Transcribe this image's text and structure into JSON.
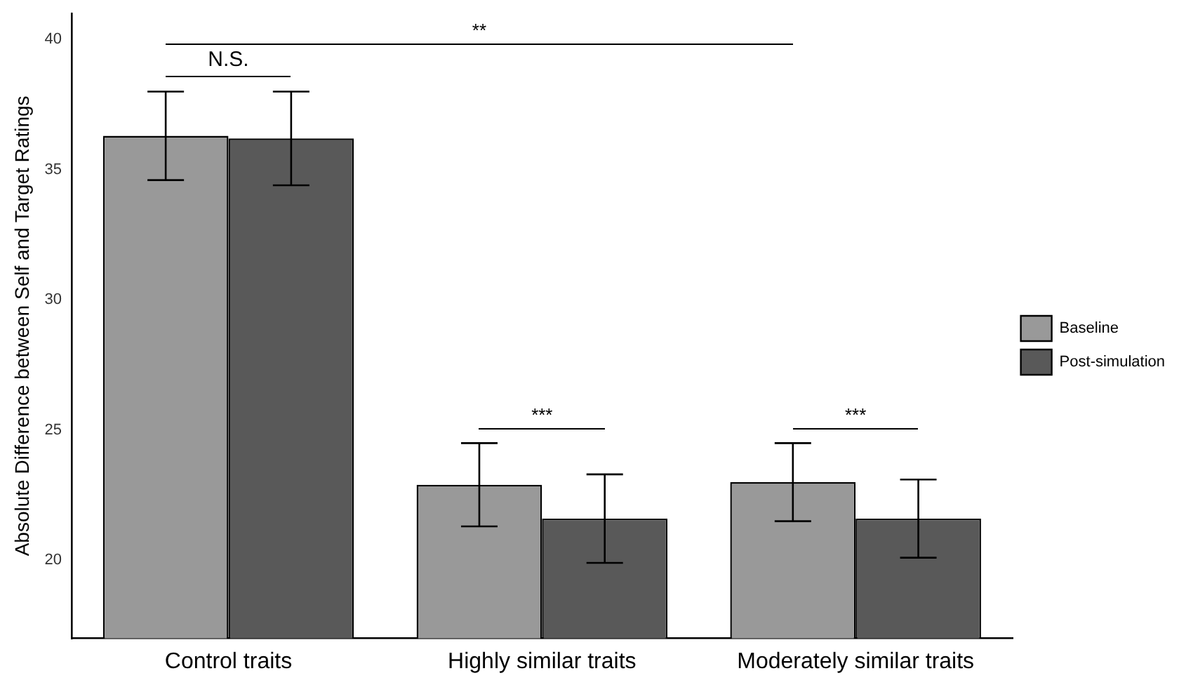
{
  "chart_data": {
    "type": "bar",
    "ylabel": "Absolute Difference between Self and Target Ratings",
    "categories": [
      "Control traits",
      "Highly similar traits",
      "Moderately similar traits"
    ],
    "series": [
      {
        "name": "Baseline",
        "color": "#999999",
        "values": [
          36.3,
          22.9,
          23.0
        ],
        "errors": [
          1.7,
          1.6,
          1.5
        ]
      },
      {
        "name": "Post-simulation",
        "color": "#595959",
        "values": [
          36.2,
          21.6,
          21.6
        ],
        "errors": [
          1.8,
          1.7,
          1.5
        ]
      }
    ],
    "ylim": [
      17,
      41
    ],
    "yticks": [
      20,
      25,
      30,
      35,
      40
    ],
    "grid": false,
    "legend": "right",
    "annotations": [
      "**",
      "N.S.",
      "***",
      "***"
    ]
  }
}
